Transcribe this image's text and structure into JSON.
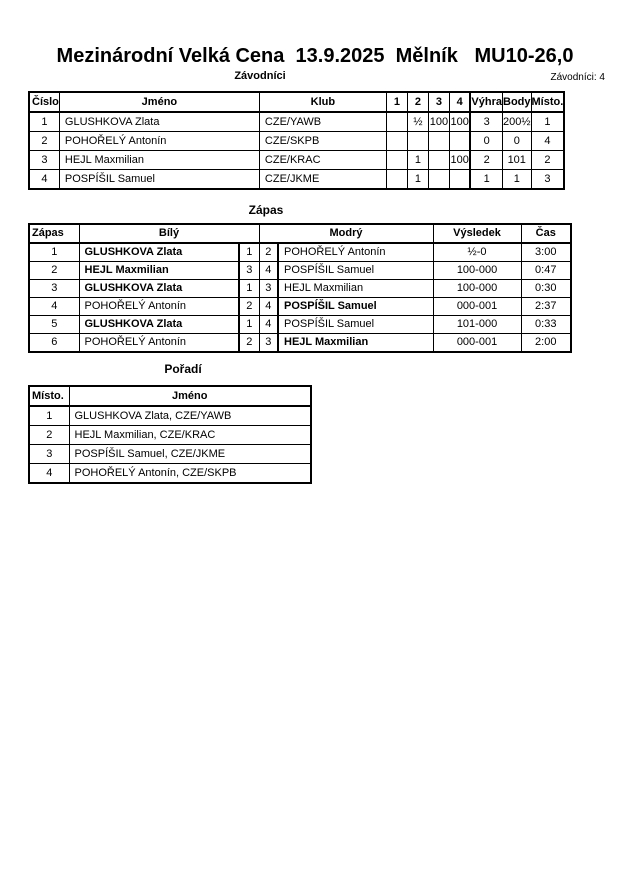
{
  "page": {
    "title": "Mezinárodní Velká Cena  13.9.2025  Mělník   MU10-26,0"
  },
  "zavodnici": {
    "label": "Závodníci",
    "count_label": "Závodníci: 4",
    "headers": [
      "Číslo",
      "Jméno",
      "Klub",
      "1",
      "2",
      "3",
      "4",
      "Výhra",
      "Body",
      "Místo."
    ],
    "rows": [
      [
        "1",
        "GLUSHKOVA Zlata",
        "CZE/YAWB",
        "",
        "½",
        "100",
        "100",
        "3",
        "200½",
        "1"
      ],
      [
        "2",
        "POHOŘELÝ Antonín",
        "CZE/SKPB",
        "",
        "",
        "",
        "",
        "0",
        "0",
        "4"
      ],
      [
        "3",
        "HEJL Maxmilian",
        "CZE/KRAC",
        "",
        "1",
        "",
        "100",
        "2",
        "101",
        "2"
      ],
      [
        "4",
        "POSPÍŠIL Samuel",
        "CZE/JKME",
        "",
        "1",
        "",
        "",
        "1",
        "1",
        "3"
      ]
    ]
  },
  "zapas": {
    "title": "Zápas",
    "headers": {
      "match": "Zápas",
      "white": "Bílý",
      "blue": "Modrý",
      "result": "Výsledek",
      "time": "Čas"
    },
    "rows": [
      {
        "num": "1",
        "white": "GLUSHKOVA Zlata",
        "white_bold": true,
        "white_no": "1",
        "blue_no": "2",
        "blue": "POHOŘELÝ Antonín",
        "blue_bold": false,
        "result": "½-0",
        "time": "3:00"
      },
      {
        "num": "2",
        "white": "HEJL Maxmilian",
        "white_bold": true,
        "white_no": "3",
        "blue_no": "4",
        "blue": "POSPÍŠIL Samuel",
        "blue_bold": false,
        "result": "100-000",
        "time": "0:47"
      },
      {
        "num": "3",
        "white": "GLUSHKOVA Zlata",
        "white_bold": true,
        "white_no": "1",
        "blue_no": "3",
        "blue": "HEJL Maxmilian",
        "blue_bold": false,
        "result": "100-000",
        "time": "0:30"
      },
      {
        "num": "4",
        "white": "POHOŘELÝ Antonín",
        "white_bold": false,
        "white_no": "2",
        "blue_no": "4",
        "blue": "POSPÍŠIL Samuel",
        "blue_bold": true,
        "result": "000-001",
        "time": "2:37"
      },
      {
        "num": "5",
        "white": "GLUSHKOVA Zlata",
        "white_bold": true,
        "white_no": "1",
        "blue_no": "4",
        "blue": "POSPÍŠIL Samuel",
        "blue_bold": false,
        "result": "101-000",
        "time": "0:33"
      },
      {
        "num": "6",
        "white": "POHOŘELÝ Antonín",
        "white_bold": false,
        "white_no": "2",
        "blue_no": "3",
        "blue": "HEJL Maxmilian",
        "blue_bold": true,
        "result": "000-001",
        "time": "2:00"
      }
    ]
  },
  "poradi": {
    "title": "Pořadí",
    "headers": [
      "Místo.",
      "Jméno"
    ],
    "rows": [
      [
        "1",
        "GLUSHKOVA Zlata, CZE/YAWB"
      ],
      [
        "2",
        "HEJL Maxmilian, CZE/KRAC"
      ],
      [
        "3",
        "POSPÍŠIL Samuel, CZE/JKME"
      ],
      [
        "4",
        "POHOŘELÝ Antonín, CZE/SKPB"
      ]
    ]
  }
}
